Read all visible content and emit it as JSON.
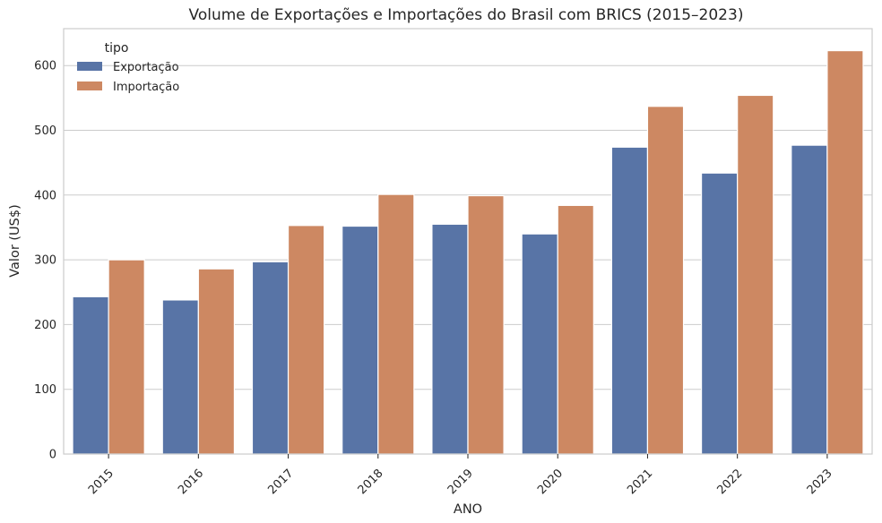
{
  "chart_data": {
    "type": "bar",
    "title": "Volume de Exportações e Importações do Brasil com BRICS (2015–2023)",
    "xlabel": "ANO",
    "ylabel": "Valor (US$)",
    "categories": [
      "2015",
      "2016",
      "2017",
      "2018",
      "2019",
      "2020",
      "2021",
      "2022",
      "2023"
    ],
    "series": [
      {
        "name": "Exportação",
        "color": "#5874a6",
        "values": [
          243,
          238,
          297,
          352,
          355,
          340,
          474,
          434,
          477
        ]
      },
      {
        "name": "Importação",
        "color": "#cd8862",
        "values": [
          300,
          286,
          353,
          401,
          399,
          384,
          537,
          554,
          623
        ]
      }
    ],
    "ylim": [
      0,
      657
    ],
    "yticks": [
      0,
      100,
      200,
      300,
      400,
      500,
      600
    ],
    "legend": {
      "title": "tipo",
      "placement": "top-left"
    },
    "grid": "horizontal"
  }
}
